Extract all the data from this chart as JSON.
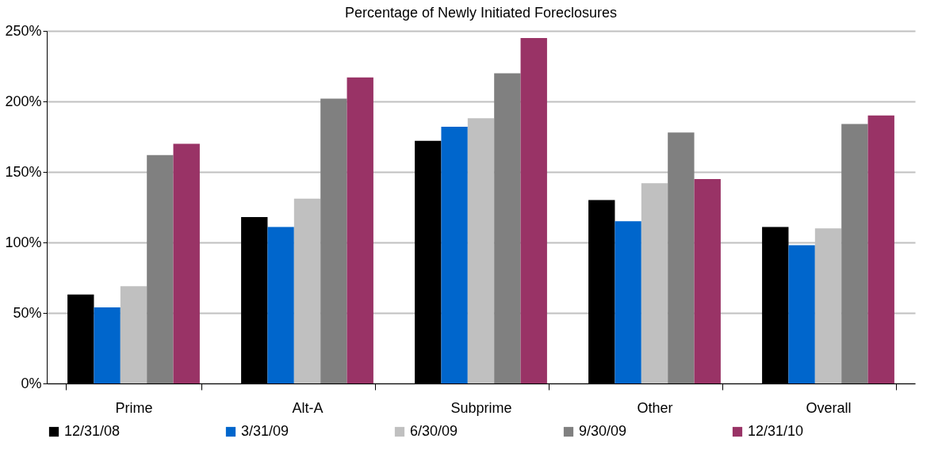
{
  "chart_data": {
    "type": "bar",
    "title": "Percentage of Newly Initiated Foreclosures",
    "categories": [
      "Prime",
      "Alt-A",
      "Subprime",
      "Other",
      "Overall"
    ],
    "series": [
      {
        "name": "12/31/08",
        "color": "#000000",
        "values": [
          63,
          118,
          172,
          130,
          111
        ]
      },
      {
        "name": "3/31/09",
        "color": "#0066cc",
        "values": [
          54,
          111,
          182,
          115,
          98
        ]
      },
      {
        "name": "6/30/09",
        "color": "#c0c0c0",
        "values": [
          69,
          131,
          188,
          142,
          110
        ]
      },
      {
        "name": "9/30/09",
        "color": "#808080",
        "values": [
          162,
          202,
          220,
          178,
          184
        ]
      },
      {
        "name": "12/31/10",
        "color": "#993366",
        "values": [
          170,
          217,
          245,
          145,
          190
        ]
      }
    ],
    "ylim": [
      0,
      250
    ],
    "yticks": [
      {
        "value": 0,
        "label": "0%"
      },
      {
        "value": 50,
        "label": "50%"
      },
      {
        "value": 100,
        "label": "100%"
      },
      {
        "value": 150,
        "label": "150%"
      },
      {
        "value": 200,
        "label": "200%"
      },
      {
        "value": 250,
        "label": "250%"
      }
    ],
    "grid": "y",
    "legend": "bottom"
  }
}
